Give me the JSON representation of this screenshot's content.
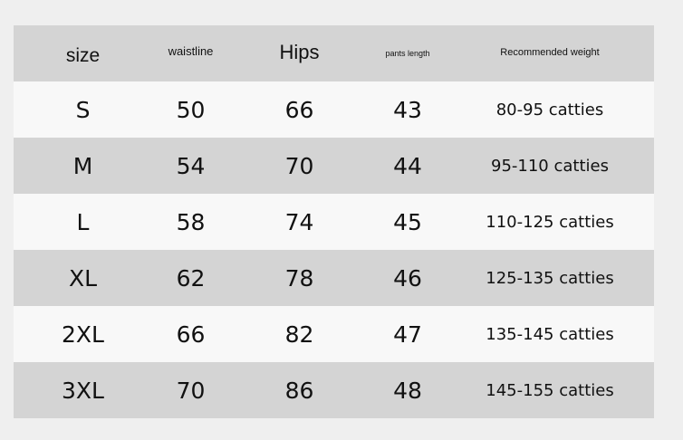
{
  "table": {
    "headers": [
      "size",
      "waistline",
      "Hips",
      "pants length",
      "Recommended weight"
    ],
    "rows": [
      [
        "S",
        "50",
        "66",
        "43",
        "80-95 catties"
      ],
      [
        "M",
        "54",
        "70",
        "44",
        "95-110 catties"
      ],
      [
        "L",
        "58",
        "74",
        "45",
        "110-125 catties"
      ],
      [
        "XL",
        "62",
        "78",
        "46",
        "125-135 catties"
      ],
      [
        "2XL",
        "66",
        "82",
        "47",
        "135-145 catties"
      ],
      [
        "3XL",
        "70",
        "86",
        "48",
        "145-155 catties"
      ]
    ]
  },
  "colors": {
    "header": "#d4d4d4",
    "row_light": "#f8f8f8",
    "row_gray": "#d4d4d4",
    "background": "#efefef"
  }
}
